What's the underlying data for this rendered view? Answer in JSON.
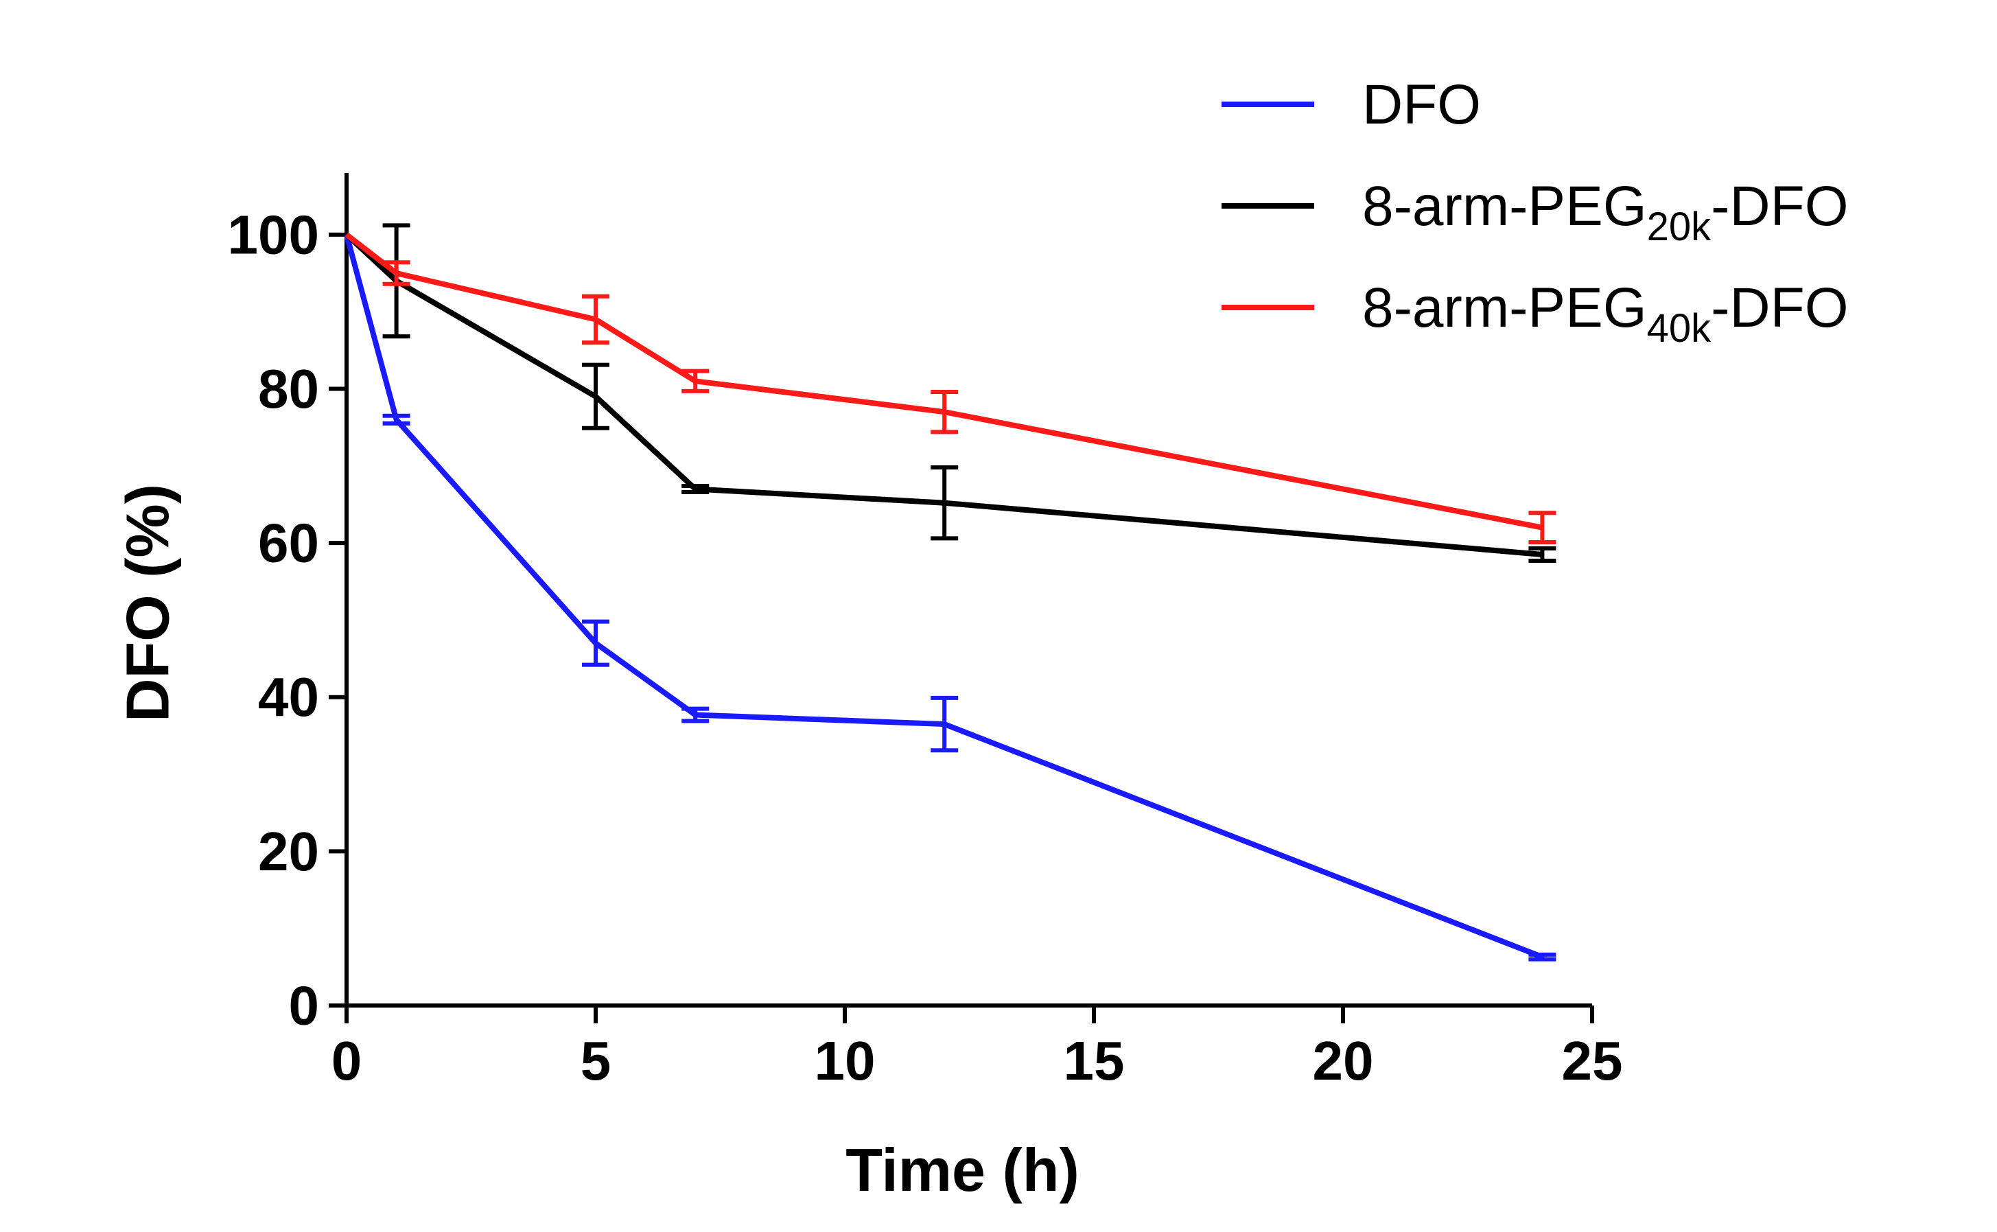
{
  "chart_data": {
    "type": "line",
    "title": "",
    "xlabel": "Time (h)",
    "ylabel": "DFO (%)",
    "xlim": [
      0,
      25
    ],
    "ylim": [
      0,
      108
    ],
    "xticks": [
      0,
      5,
      10,
      15,
      20,
      25
    ],
    "yticks": [
      0,
      20,
      40,
      60,
      80,
      100
    ],
    "grid": false,
    "legend_position": "top-right",
    "series": [
      {
        "name": "DFO",
        "legend_parts": {
          "base": "DFO",
          "sub": "",
          "suffix": ""
        },
        "color": "#1a1aff",
        "x": [
          0,
          1,
          5,
          7,
          12,
          24
        ],
        "y": [
          100,
          76,
          47,
          37.7,
          36.5,
          6.3
        ],
        "error": [
          0,
          0.5,
          2.8,
          0.8,
          3.4,
          0.3
        ]
      },
      {
        "name": "8-arm-PEG20k-DFO",
        "legend_parts": {
          "base": "8-arm-PEG",
          "sub": "20k",
          "suffix": "-DFO"
        },
        "color": "#000000",
        "x": [
          0,
          1,
          5,
          7,
          12,
          24
        ],
        "y": [
          100,
          94,
          79,
          67,
          65.2,
          58.5
        ],
        "error": [
          0,
          7.2,
          4.1,
          0.4,
          4.6,
          0.8
        ]
      },
      {
        "name": "8-arm-PEG40k-DFO",
        "legend_parts": {
          "base": "8-arm-PEG",
          "sub": "40k",
          "suffix": "-DFO"
        },
        "color": "#ff1a1a",
        "x": [
          0,
          1,
          5,
          7,
          12,
          24
        ],
        "y": [
          100,
          95,
          89,
          81,
          77,
          62
        ],
        "error": [
          0,
          1.4,
          3.0,
          1.3,
          2.6,
          1.9
        ]
      }
    ]
  }
}
